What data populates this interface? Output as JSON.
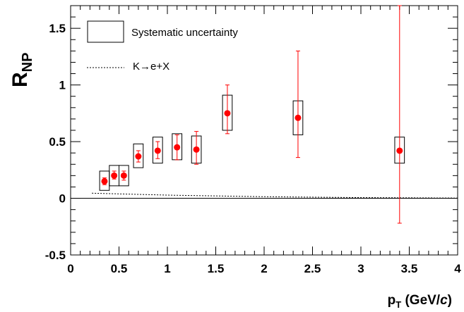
{
  "chart_data": {
    "type": "scatter",
    "xlabel": {
      "main": "p",
      "sub": "T",
      "rest": " (GeV/",
      "italic": "c",
      "close": ")"
    },
    "ylabel": {
      "main": "R",
      "sub": "NP"
    },
    "xlim": [
      0,
      4
    ],
    "ylim": [
      -0.5,
      1.7
    ],
    "x_ticks": [
      {
        "value": 0,
        "label": "0"
      },
      {
        "value": 0.5,
        "label": "0.5"
      },
      {
        "value": 1,
        "label": "1"
      },
      {
        "value": 1.5,
        "label": "1.5"
      },
      {
        "value": 2,
        "label": "2"
      },
      {
        "value": 2.5,
        "label": "2.5"
      },
      {
        "value": 3,
        "label": "3"
      },
      {
        "value": 3.5,
        "label": "3.5"
      },
      {
        "value": 4,
        "label": "4"
      }
    ],
    "y_ticks": [
      {
        "value": -0.5,
        "label": "-0.5"
      },
      {
        "value": 0,
        "label": "0"
      },
      {
        "value": 0.5,
        "label": "0.5"
      },
      {
        "value": 1,
        "label": "1"
      },
      {
        "value": 1.5,
        "label": "1.5"
      }
    ],
    "legend": {
      "placement": "top-left",
      "entries": [
        {
          "label": "Systematic uncertainty",
          "symbol": "box"
        },
        {
          "label": "K→e+X",
          "symbol": "dotted-line"
        }
      ]
    },
    "series": [
      {
        "symbol": "marker-with-stat-error",
        "color": "#ff0000",
        "points": [
          {
            "x": 0.35,
            "y": 0.15,
            "stat_low": 0.12,
            "stat_high": 0.18,
            "sys_low": 0.07,
            "sys_high": 0.24,
            "sys_xlow": 0.3,
            "sys_xhigh": 0.4
          },
          {
            "x": 0.45,
            "y": 0.2,
            "stat_low": 0.17,
            "stat_high": 0.24,
            "sys_low": 0.11,
            "sys_high": 0.29,
            "sys_xlow": 0.4,
            "sys_xhigh": 0.5
          },
          {
            "x": 0.55,
            "y": 0.2,
            "stat_low": 0.16,
            "stat_high": 0.24,
            "sys_low": 0.11,
            "sys_high": 0.29,
            "sys_xlow": 0.5,
            "sys_xhigh": 0.6
          },
          {
            "x": 0.7,
            "y": 0.37,
            "stat_low": 0.32,
            "stat_high": 0.42,
            "sys_low": 0.27,
            "sys_high": 0.48,
            "sys_xlow": 0.65,
            "sys_xhigh": 0.75
          },
          {
            "x": 0.9,
            "y": 0.42,
            "stat_low": 0.35,
            "stat_high": 0.5,
            "sys_low": 0.31,
            "sys_high": 0.54,
            "sys_xlow": 0.85,
            "sys_xhigh": 0.95
          },
          {
            "x": 1.1,
            "y": 0.45,
            "stat_low": 0.34,
            "stat_high": 0.56,
            "sys_low": 0.34,
            "sys_high": 0.57,
            "sys_xlow": 1.05,
            "sys_xhigh": 1.15
          },
          {
            "x": 1.3,
            "y": 0.43,
            "stat_low": 0.3,
            "stat_high": 0.59,
            "sys_low": 0.31,
            "sys_high": 0.55,
            "sys_xlow": 1.25,
            "sys_xhigh": 1.35
          },
          {
            "x": 1.62,
            "y": 0.75,
            "stat_low": 0.57,
            "stat_high": 1.0,
            "sys_low": 0.6,
            "sys_high": 0.91,
            "sys_xlow": 1.57,
            "sys_xhigh": 1.67
          },
          {
            "x": 2.35,
            "y": 0.71,
            "stat_low": 0.36,
            "stat_high": 1.3,
            "sys_low": 0.56,
            "sys_high": 0.86,
            "sys_xlow": 2.3,
            "sys_xhigh": 2.4
          },
          {
            "x": 3.4,
            "y": 0.42,
            "stat_low": -0.22,
            "stat_high": 1.7,
            "sys_low": 0.31,
            "sys_high": 0.54,
            "sys_xlow": 3.35,
            "sys_xhigh": 3.45
          }
        ]
      },
      {
        "symbol": "dotted-line",
        "color": "#000000",
        "x": [
          0.22,
          1.0,
          2.0,
          3.0,
          4.0
        ],
        "y": [
          0.045,
          0.028,
          0.014,
          0.006,
          0.002
        ]
      }
    ],
    "reference_line": {
      "y": 0
    }
  }
}
